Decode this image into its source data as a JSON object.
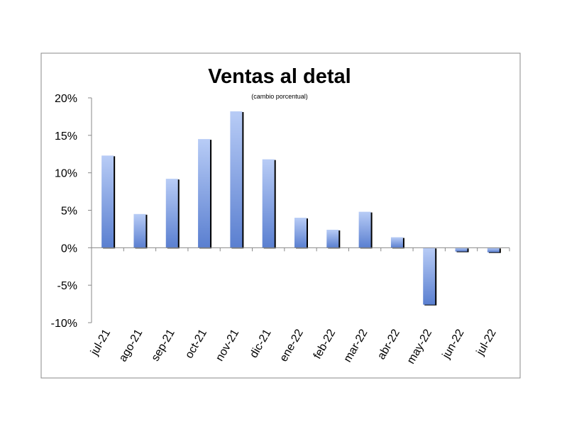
{
  "chart_data": {
    "type": "bar",
    "title": "Ventas al detal",
    "subtitle": "(cambio porcentual)",
    "xlabel": "",
    "ylabel": "",
    "categories": [
      "jul-21",
      "ago-21",
      "sep-21",
      "oct-21",
      "nov-21",
      "dic-21",
      "ene-22",
      "feb-22",
      "mar-22",
      "abr-22",
      "may-22",
      "jun-22",
      "jul-22"
    ],
    "values": [
      12.3,
      4.5,
      9.2,
      14.5,
      18.2,
      11.8,
      4.0,
      2.4,
      4.8,
      1.4,
      -7.6,
      -0.5,
      -0.6
    ],
    "ylim": [
      -10,
      20
    ],
    "yticks": [
      20,
      15,
      10,
      5,
      0,
      -5,
      -10
    ],
    "ytick_labels": [
      "20%",
      "15%",
      "10%",
      "5%",
      "0%",
      "-5%",
      "-10%"
    ],
    "grid": false,
    "legend": "none",
    "colors": {
      "bar_light": "#b8ccf6",
      "bar_dark": "#5a7fd0",
      "shadow": "#000000",
      "frame": "#888888"
    }
  }
}
